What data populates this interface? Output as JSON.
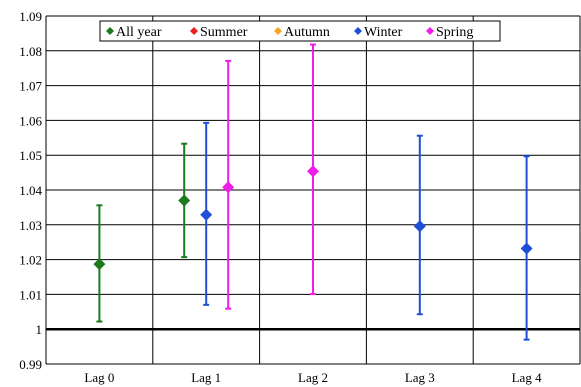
{
  "chart_data": {
    "type": "scatter",
    "title": "",
    "xlabel": "",
    "ylabel": "",
    "categories": [
      "Lag 0",
      "Lag 1",
      "Lag 2",
      "Lag 3",
      "Lag 4"
    ],
    "ylim": [
      0.99,
      1.09
    ],
    "yticks": [
      0.99,
      1,
      1.01,
      1.02,
      1.03,
      1.04,
      1.05,
      1.06,
      1.07,
      1.08,
      1.09
    ],
    "ytick_labels": [
      "0.99",
      "1",
      "1.01",
      "1.02",
      "1.03",
      "1.04",
      "1.05",
      "1.06",
      "1.07",
      "1.08",
      "1.09"
    ],
    "reference_line": 1,
    "grid": "horizontal and vertical",
    "legend_position": "top-center",
    "series": [
      {
        "name": "All year",
        "color": "#1b7a1b",
        "points": [
          {
            "category": "Lag 0",
            "value": 1.0187,
            "lower": 1.0022,
            "upper": 1.0356
          },
          {
            "category": "Lag 1",
            "value": 1.037,
            "lower": 1.0207,
            "upper": 1.0533
          }
        ]
      },
      {
        "name": "Summer",
        "color": "#e8211d",
        "points": []
      },
      {
        "name": "Autumn",
        "color": "#f5a623",
        "points": []
      },
      {
        "name": "Winter",
        "color": "#1f4fd6",
        "points": [
          {
            "category": "Lag 1",
            "value": 1.0329,
            "lower": 1.007,
            "upper": 1.0593
          },
          {
            "category": "Lag 3",
            "value": 1.0296,
            "lower": 1.0043,
            "upper": 1.0556
          },
          {
            "category": "Lag 4",
            "value": 1.0232,
            "lower": 0.997,
            "upper": 1.0497
          }
        ]
      },
      {
        "name": "Spring",
        "color": "#f01ee8",
        "points": [
          {
            "category": "Lag 1",
            "value": 1.0408,
            "lower": 1.0059,
            "upper": 1.0771
          },
          {
            "category": "Lag 2",
            "value": 1.0454,
            "lower": 1.0101,
            "upper": 1.0818
          }
        ]
      }
    ]
  }
}
